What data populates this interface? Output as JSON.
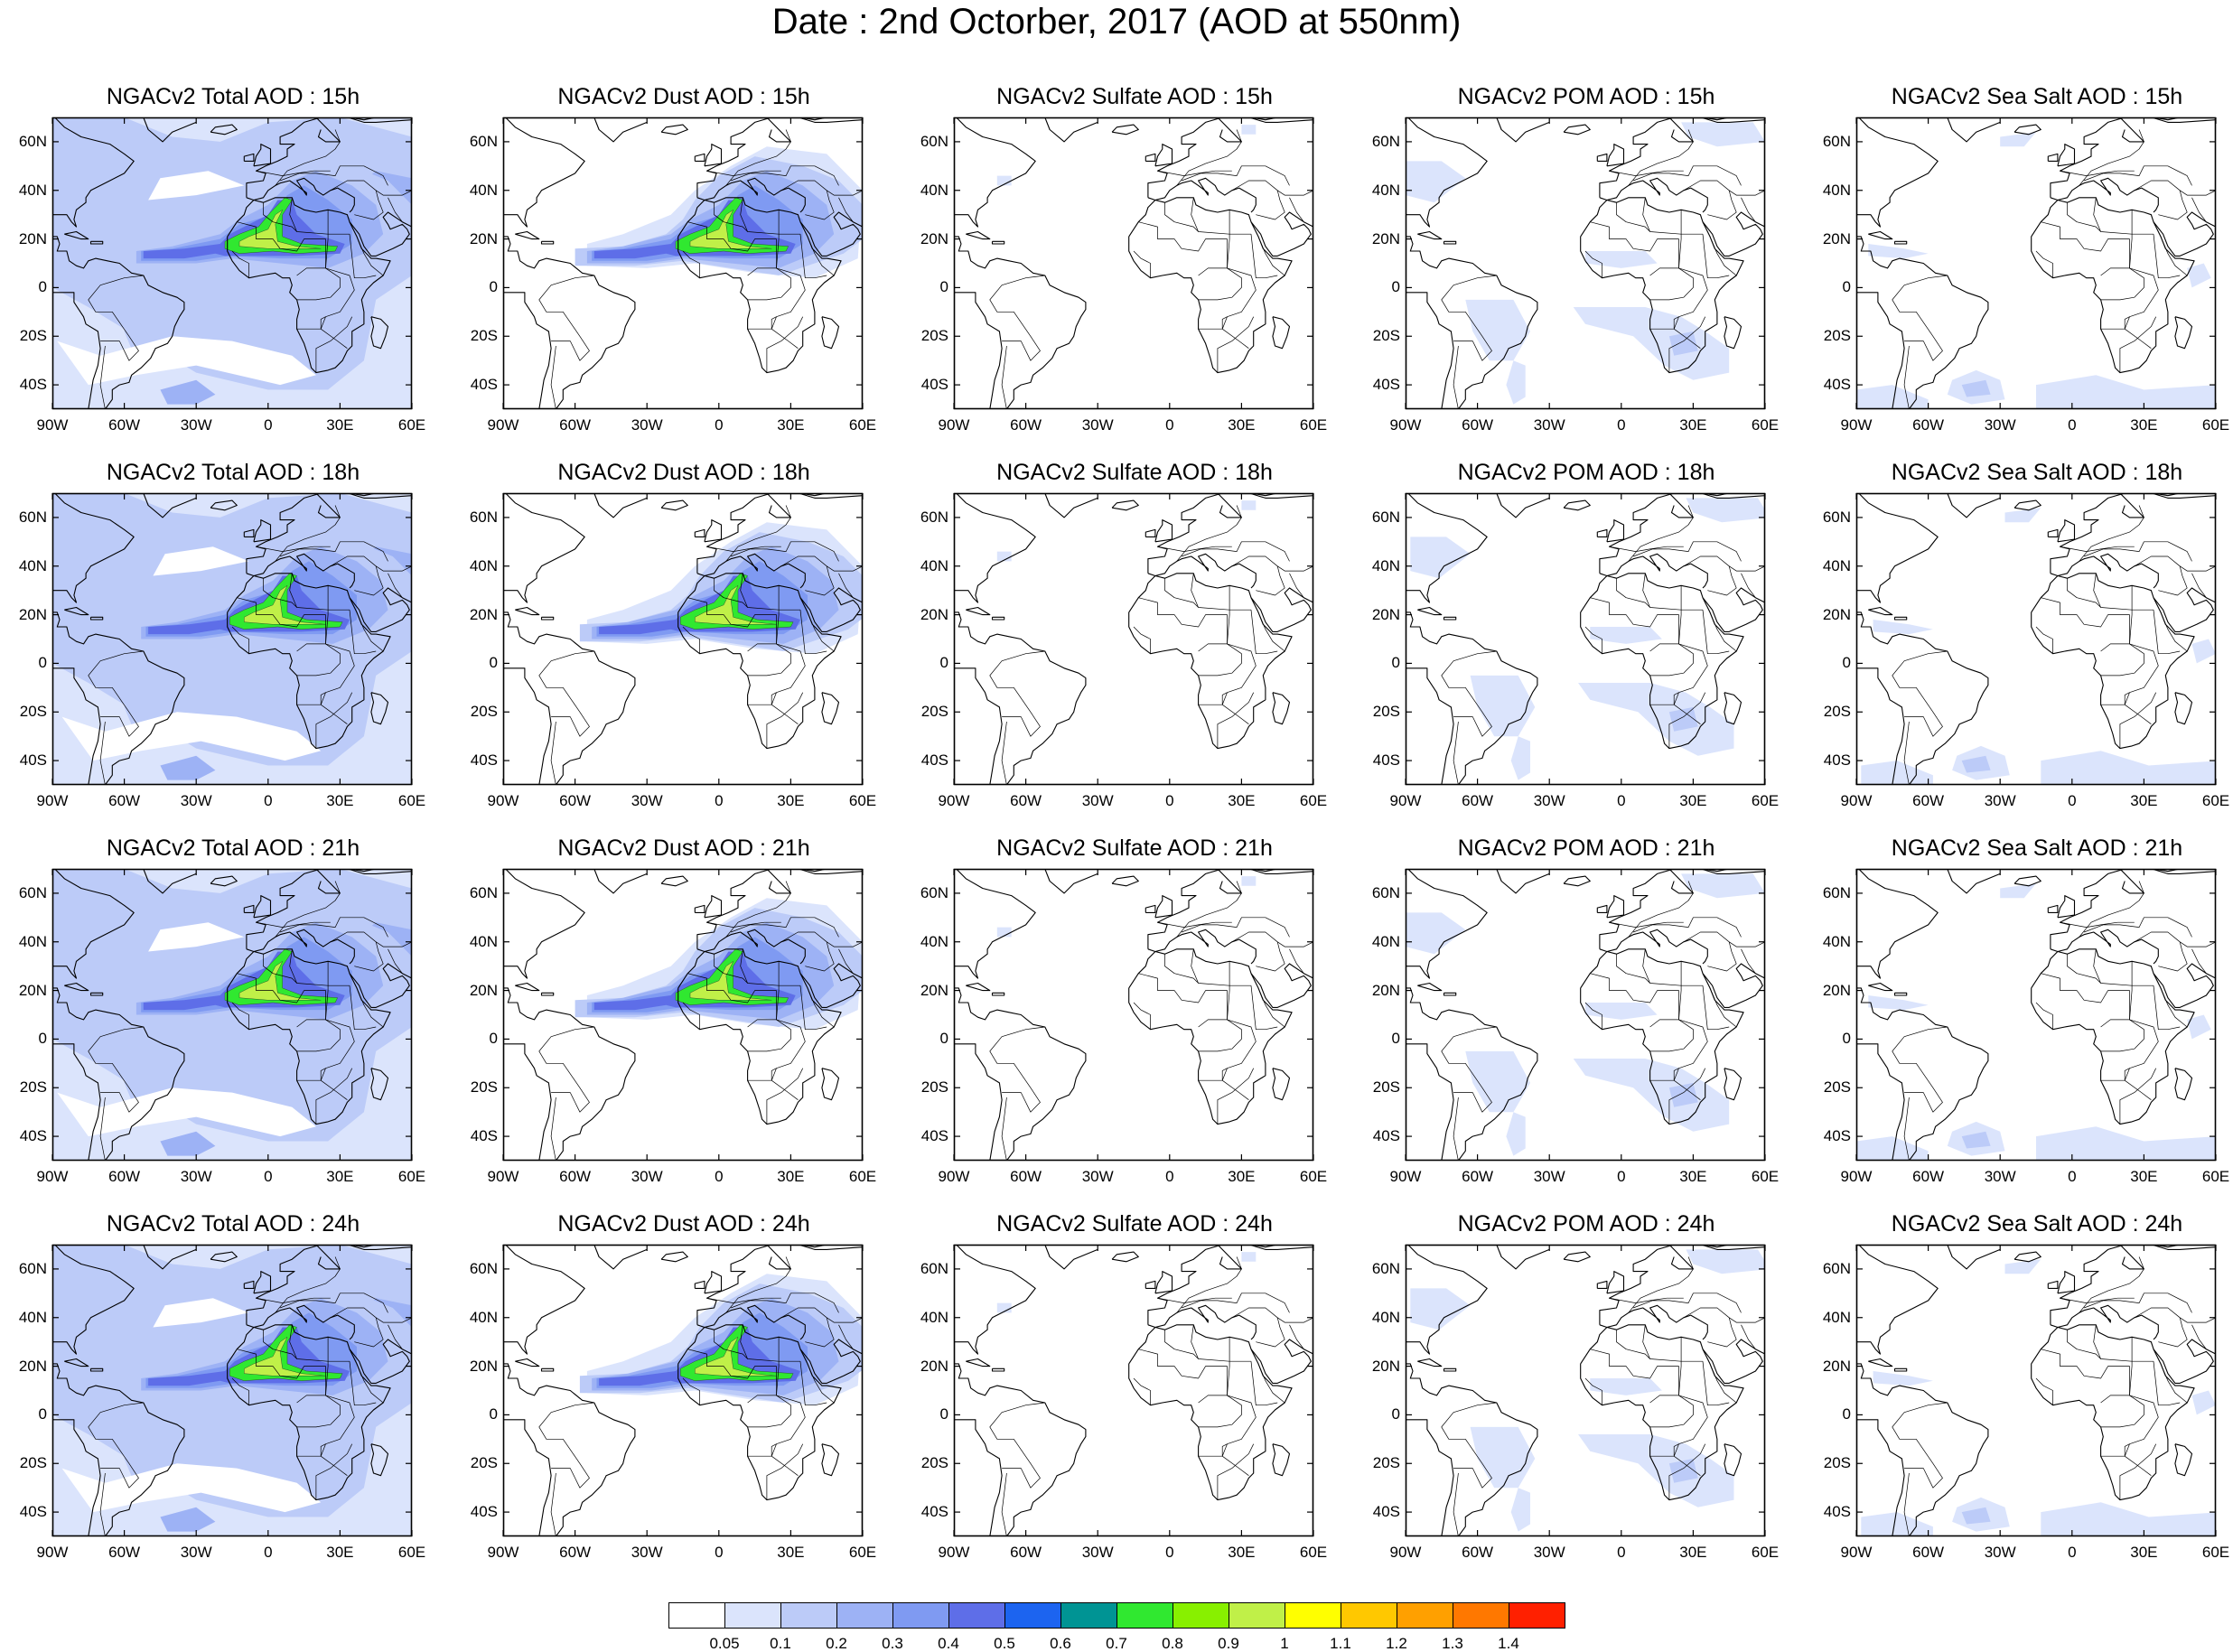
{
  "title": "Date : 2nd Octorber, 2017 (AOD at 550nm)",
  "axes": {
    "lat_labels": [
      "60N",
      "40N",
      "20N",
      "0",
      "20S",
      "40S"
    ],
    "lat_values": [
      60,
      40,
      20,
      0,
      -20,
      -40
    ],
    "lon_labels": [
      "90W",
      "60W",
      "30W",
      "0",
      "30E",
      "60E"
    ],
    "lon_values": [
      -90,
      -60,
      -30,
      0,
      30,
      60
    ],
    "lon_range": [
      -90,
      60
    ],
    "lat_range": [
      -50,
      70
    ]
  },
  "rows": [
    "15h",
    "18h",
    "21h",
    "24h"
  ],
  "panel_titles": [
    [
      "NGACv2 Total AOD : 15h",
      "NGACv2 Dust AOD : 15h",
      "NGACv2 Sulfate AOD : 15h",
      "NGACv2 POM AOD : 15h",
      "NGACv2 Sea Salt AOD : 15h"
    ],
    [
      "NGACv2 Total AOD : 18h",
      "NGACv2 Dust AOD : 18h",
      "NGACv2 Sulfate AOD : 18h",
      "NGACv2 POM AOD : 18h",
      "NGACv2 Sea Salt AOD : 18h"
    ],
    [
      "NGACv2 Total AOD : 21h",
      "NGACv2 Dust AOD : 21h",
      "NGACv2 Sulfate AOD : 21h",
      "NGACv2 POM AOD : 21h",
      "NGACv2 Sea Salt AOD : 21h"
    ],
    [
      "NGACv2 Total AOD : 24h",
      "NGACv2 Dust AOD : 24h",
      "NGACv2 Sulfate AOD : 24h",
      "NGACv2 POM AOD : 24h",
      "NGACv2 Sea Salt  AOD : 24h"
    ]
  ],
  "colorbar": {
    "colors": [
      "#ffffff",
      "#dbe4fc",
      "#bccbf8",
      "#9db2f5",
      "#7f9af2",
      "#5e6ee8",
      "#1c64f0",
      "#009494",
      "#30e830",
      "#88f000",
      "#c0f048",
      "#ffff00",
      "#ffc800",
      "#ffa000",
      "#ff7800",
      "#ff2000"
    ],
    "labels": [
      "0.05",
      "0.1",
      "0.2",
      "0.3",
      "0.4",
      "0.5",
      "0.6",
      "0.7",
      "0.8",
      "0.9",
      "1",
      "1.1",
      "1.2",
      "1.3",
      "1.4"
    ]
  }
}
